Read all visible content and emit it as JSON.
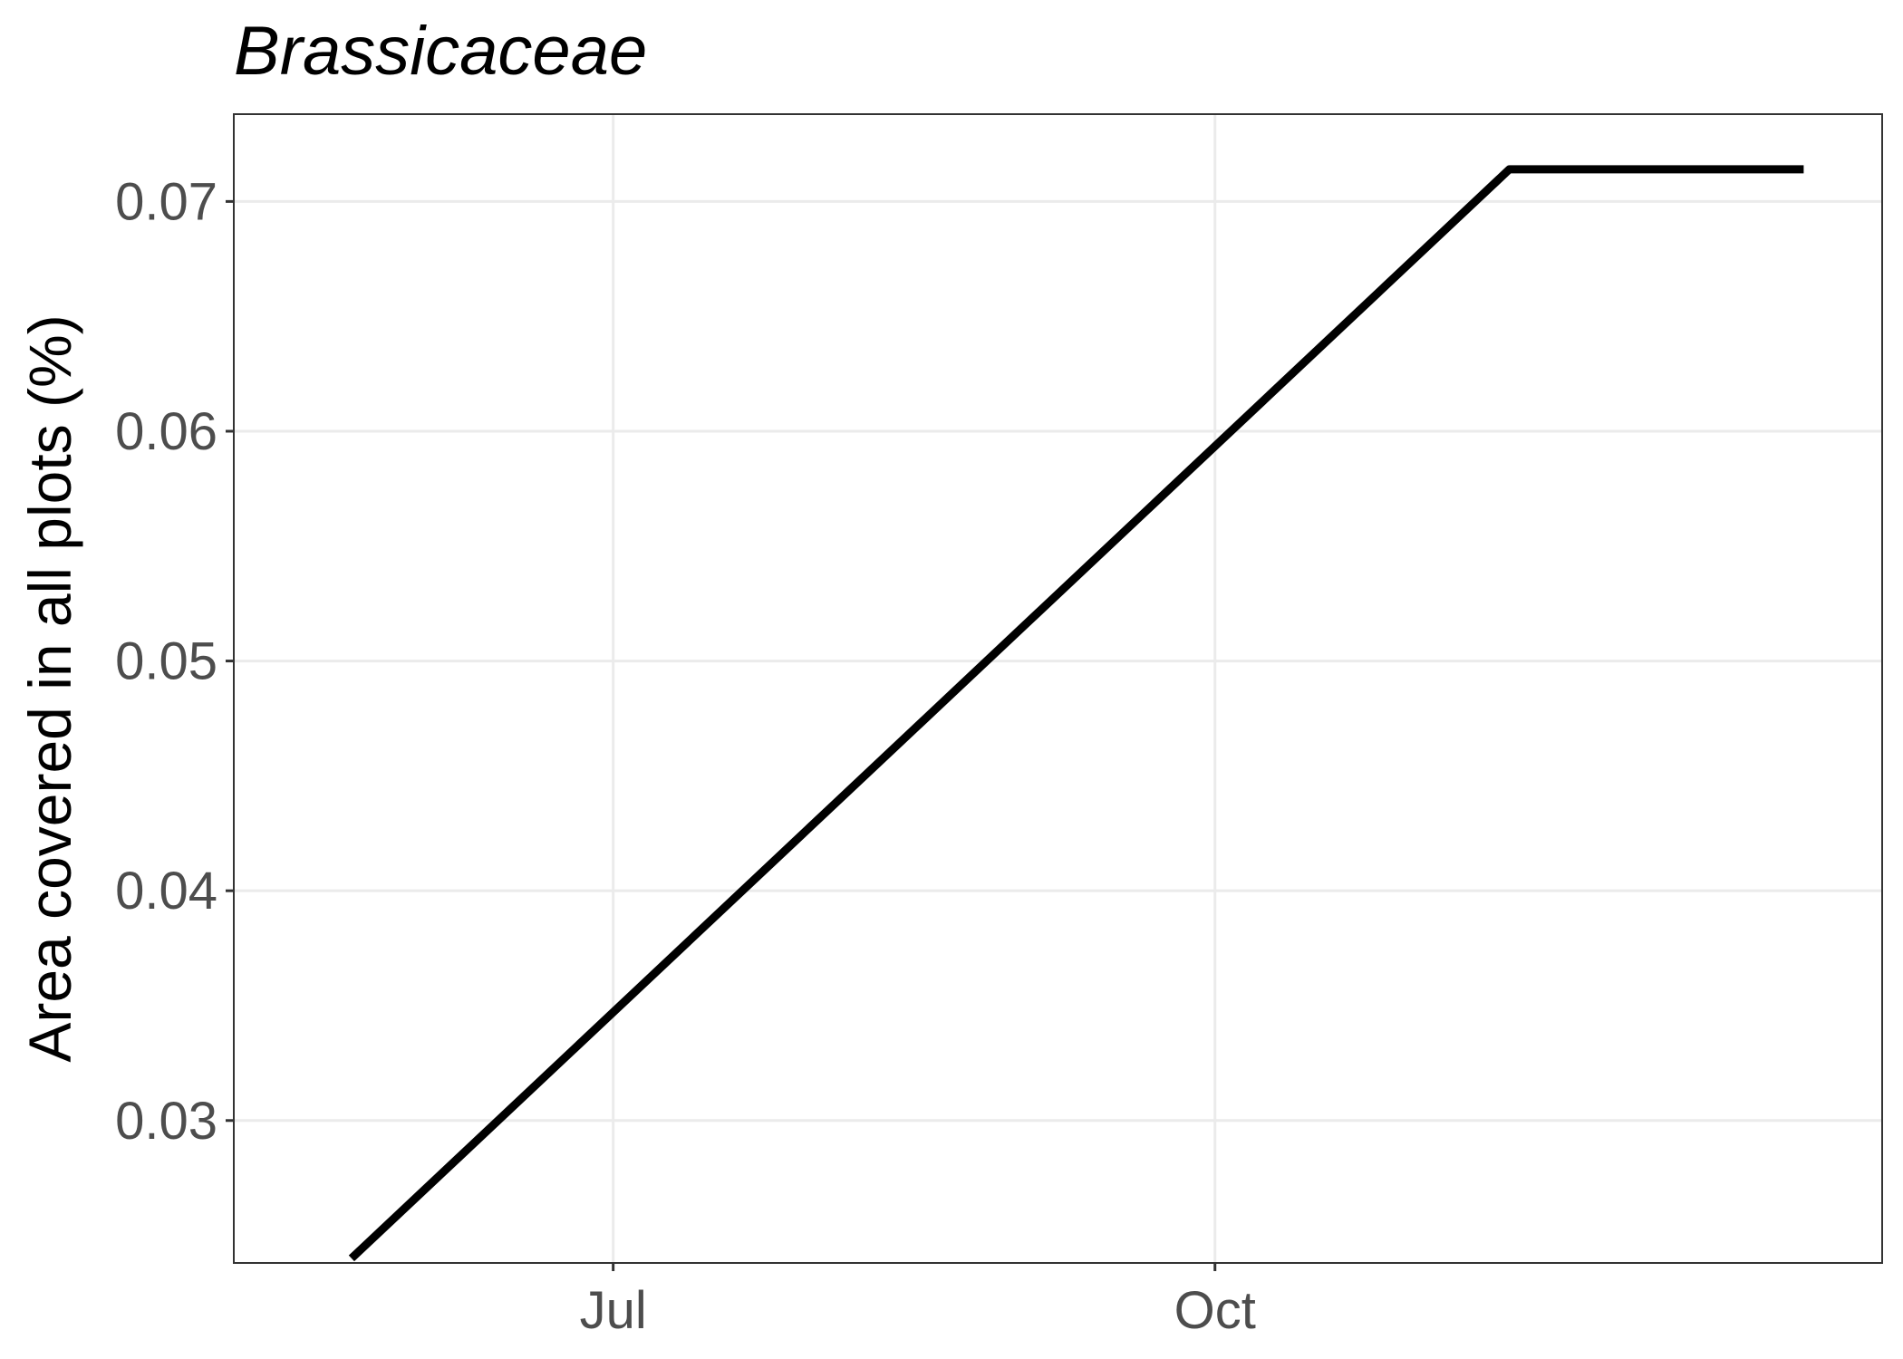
{
  "chart_data": {
    "type": "line",
    "title": "Brassicaceae",
    "xlabel": "",
    "ylabel": "Area covered in all plots (%)",
    "x_ticks": [
      "Jul",
      "Oct"
    ],
    "y_ticks": [
      "0.03",
      "0.04",
      "0.05",
      "0.06",
      "0.07"
    ],
    "ylim": [
      0.0238,
      0.0738
    ],
    "xlim": [
      "2022-05-04",
      "2023-01-11"
    ],
    "grid": true,
    "legend": "none",
    "series": [
      {
        "color": "#000000",
        "x": [
          "2022-05-22",
          "2022-11-15",
          "2022-12-30"
        ],
        "y": [
          0.024,
          0.0714,
          0.0714
        ]
      }
    ]
  }
}
